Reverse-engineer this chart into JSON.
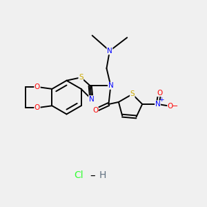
{
  "background_color": "#f0f0f0",
  "bond_color": "#000000",
  "atom_colors": {
    "O": "#ff0000",
    "N": "#0000ff",
    "S": "#ccaa00",
    "C": "#000000",
    "Cl": "#33ff33",
    "H": "#607080"
  },
  "figsize": [
    3.0,
    3.0
  ],
  "dpi": 100
}
